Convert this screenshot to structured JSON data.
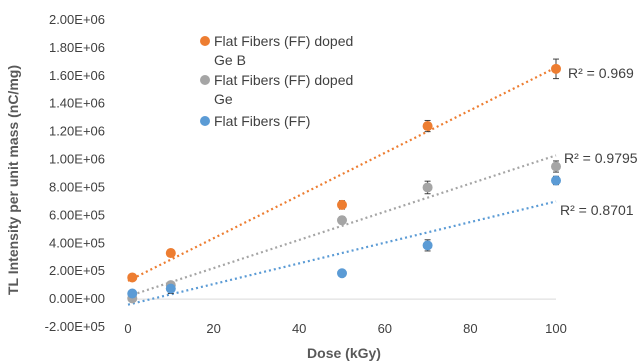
{
  "chart_data": {
    "type": "scatter",
    "title": "",
    "xlabel": "Dose (kGy)",
    "ylabel": "TL Intensity per unit mass (nC/mg)",
    "xlim": [
      0,
      100
    ],
    "ylim": [
      -200000,
      2000000
    ],
    "x_ticks": [
      "0",
      "20",
      "40",
      "60",
      "80",
      "100"
    ],
    "y_ticks": [
      "-2.00E+05",
      "0.00E+00",
      "2.00E+05",
      "4.00E+05",
      "6.00E+05",
      "8.00E+05",
      "1.00E+06",
      "1.20E+06",
      "1.40E+06",
      "1.60E+06",
      "1.80E+06",
      "2.00E+06"
    ],
    "grid": false,
    "legend_position": "top-left",
    "series": [
      {
        "name": "Flat Fibers (FF) doped Ge B",
        "legend_lines": [
          "Flat Fibers (FF) doped",
          "Ge B"
        ],
        "color": "#ED7D31",
        "x": [
          1,
          10,
          50,
          70,
          100
        ],
        "y": [
          155000,
          330000,
          675000,
          1240000,
          1650000
        ],
        "error": [
          20000,
          25000,
          30000,
          40000,
          70000
        ],
        "trendline": {
          "type": "linear",
          "from": [
            0,
            130000
          ],
          "to": [
            100,
            1660000
          ],
          "r2_label": "R² = 0.969"
        }
      },
      {
        "name": "Flat Fibers (FF) doped Ge",
        "legend_lines": [
          "Flat Fibers (FF) doped",
          "Ge"
        ],
        "color": "#A5A5A5",
        "x": [
          1,
          10,
          50,
          70,
          100
        ],
        "y": [
          5000,
          100000,
          565000,
          800000,
          950000
        ],
        "error": [
          15000,
          20000,
          25000,
          45000,
          40000
        ],
        "trendline": {
          "type": "linear",
          "from": [
            0,
            20000
          ],
          "to": [
            100,
            1030000
          ],
          "r2_label": "R² = 0.9795"
        }
      },
      {
        "name": "Flat Fibers (FF)",
        "legend_lines": [
          "Flat Fibers (FF)"
        ],
        "color": "#5B9BD5",
        "x": [
          1,
          10,
          50,
          70,
          100
        ],
        "y": [
          40000,
          75000,
          185000,
          385000,
          850000
        ],
        "error": [
          15000,
          35000,
          20000,
          40000,
          30000
        ],
        "trendline": {
          "type": "linear",
          "from": [
            0,
            -40000
          ],
          "to": [
            100,
            700000
          ],
          "r2_label": "R² = 0.8701"
        }
      }
    ]
  }
}
